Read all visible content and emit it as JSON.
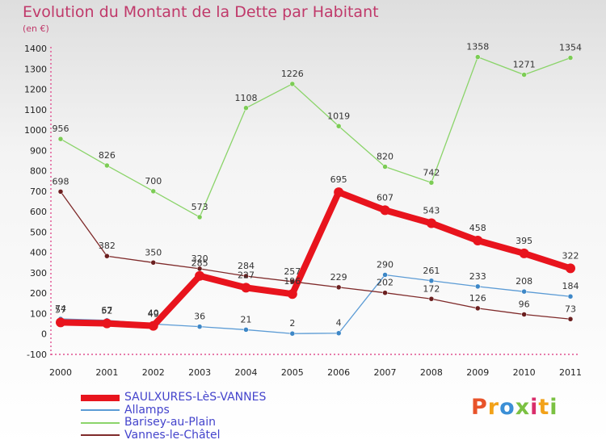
{
  "chart_data": {
    "type": "line",
    "title": "Evolution du Montant de la Dette par Habitant",
    "subtitle": "(en €)",
    "xlabel": "",
    "ylabel": "",
    "categories": [
      "2000",
      "2001",
      "2002",
      "2003",
      "2004",
      "2005",
      "2006",
      "2007",
      "2008",
      "2009",
      "2010",
      "2011"
    ],
    "ylim": [
      -100,
      1400
    ],
    "yticks": [
      -100,
      0,
      100,
      200,
      300,
      400,
      500,
      600,
      700,
      800,
      900,
      1000,
      1100,
      1200,
      1300,
      1400
    ],
    "grid": false,
    "legend_position": "bottom-left",
    "series": [
      {
        "name": "Allamps",
        "color": "#5b9bd5",
        "marker": "#3d87c7",
        "width": 1.3,
        "r": 3,
        "values": [
          74,
          67,
          49,
          36,
          21,
          2,
          4,
          290,
          261,
          233,
          208,
          184
        ]
      },
      {
        "name": "Barisey-au-Plain",
        "color": "#8bd46a",
        "marker": "#7ccc55",
        "width": 1.3,
        "r": 3,
        "values": [
          956,
          826,
          700,
          573,
          1108,
          1226,
          1019,
          820,
          742,
          1358,
          1271,
          1354
        ]
      },
      {
        "name": "Vannes-le-Châtel",
        "color": "#7f2a2a",
        "marker": "#6b1f1f",
        "width": 1.3,
        "r": 3,
        "values": [
          698,
          382,
          350,
          320,
          284,
          257,
          229,
          202,
          172,
          126,
          96,
          73
        ]
      },
      {
        "name": "SAULXURES-LèS-VANNES",
        "color": "#e8141d",
        "marker": "#e8141d",
        "width": 8,
        "r": 6,
        "values": [
          57,
          52,
          40,
          285,
          227,
          196,
          695,
          607,
          543,
          458,
          395,
          322
        ]
      }
    ]
  },
  "legend": {
    "items": [
      {
        "label": "SAULXURES-LèS-VANNES",
        "color": "#e8141d",
        "height": 8
      },
      {
        "label": "Allamps",
        "color": "#5b9bd5",
        "height": 2
      },
      {
        "label": "Barisey-au-Plain",
        "color": "#8bd46a",
        "height": 2
      },
      {
        "label": "Vannes-le-Châtel",
        "color": "#7f2a2a",
        "height": 2
      }
    ]
  },
  "logo": {
    "text": "Proxiti",
    "colors": [
      "#e8532a",
      "#f2a21a",
      "#3b8fd6",
      "#7bc142",
      "#d92e6b",
      "#f2a21a",
      "#7bc142"
    ]
  }
}
